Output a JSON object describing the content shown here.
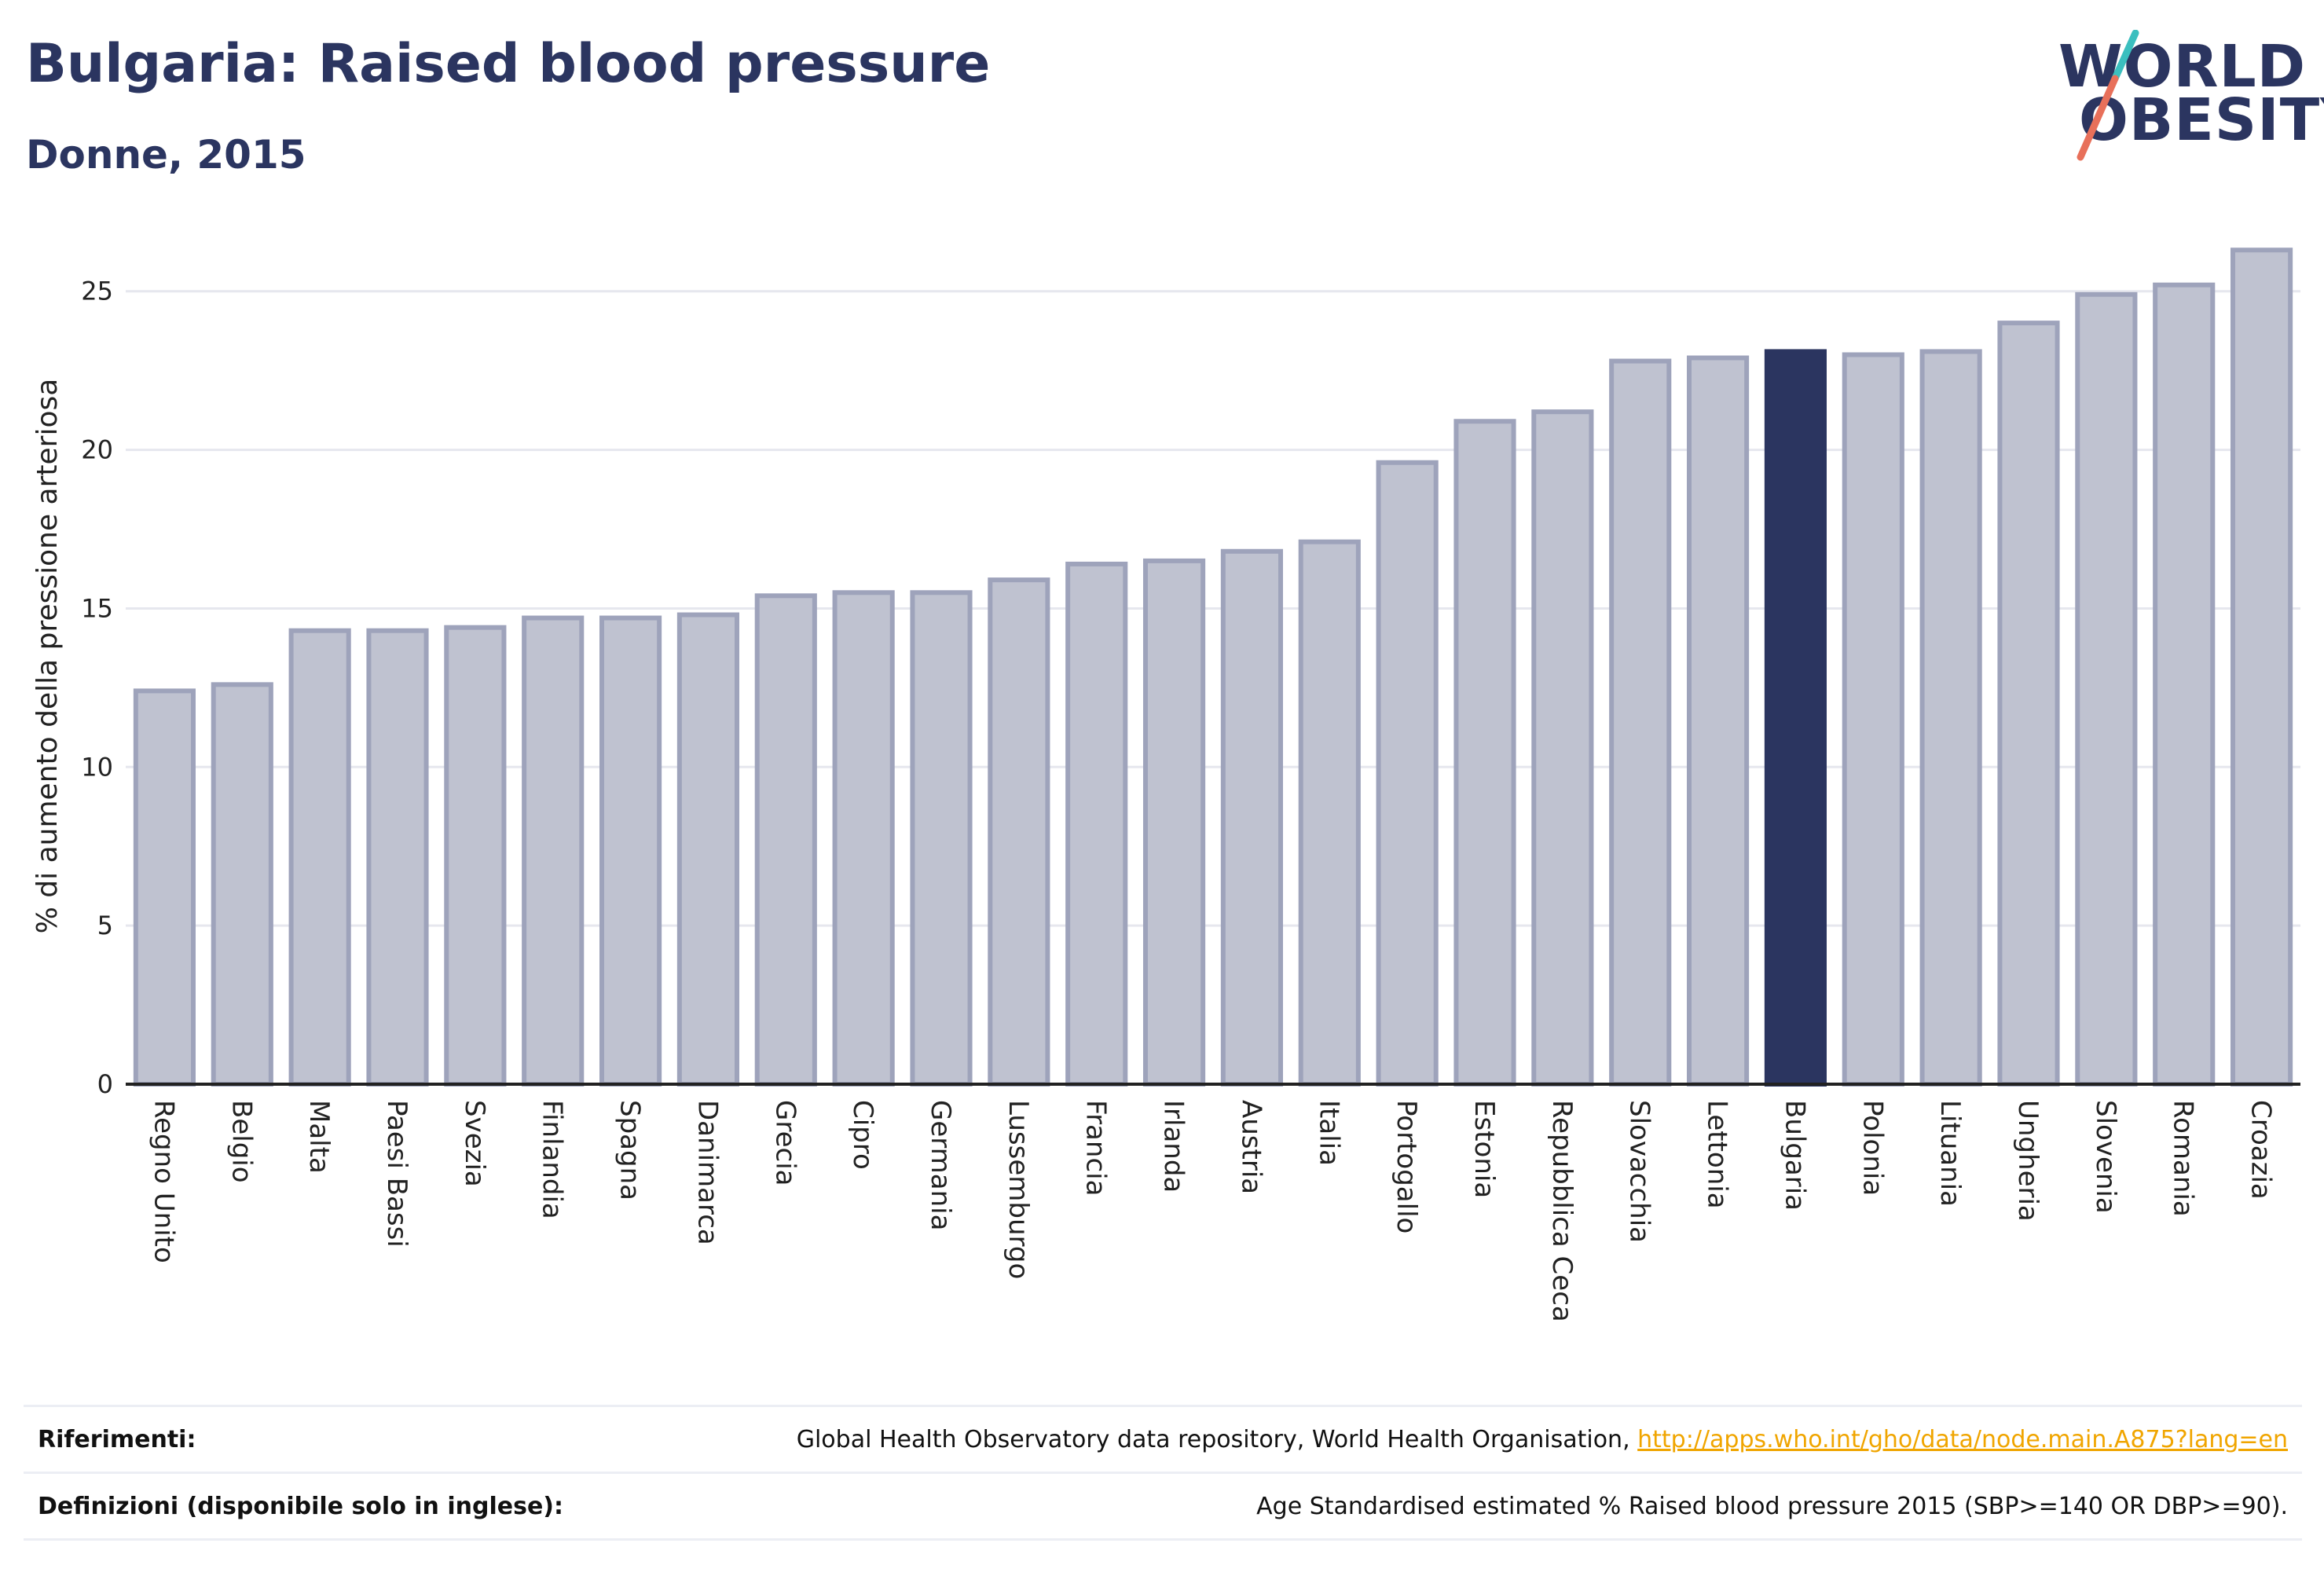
{
  "header": {
    "title": "Bulgaria: Raised blood pressure",
    "subtitle": "Donne, 2015"
  },
  "logo": {
    "line1": "WORLD",
    "line2": "OBESITY",
    "accent_teal": "#3bbfbf",
    "accent_red": "#e8705a"
  },
  "colors": {
    "bar": "#bfc2d0",
    "bar_border": "#9ea3bb",
    "highlight": "#2b3560",
    "grid": "#e6e7ee",
    "axis": "#222222"
  },
  "chart_data": {
    "type": "bar",
    "ylabel": "% di aumento della pressione arteriosa",
    "ylim": [
      0,
      27
    ],
    "yticks": [
      0,
      5,
      10,
      15,
      20,
      25
    ],
    "grid": true,
    "highlight": "Bulgaria",
    "categories": [
      "Regno Unito",
      "Belgio",
      "Malta",
      "Paesi Bassi",
      "Svezia",
      "Finlandia",
      "Spagna",
      "Danimarca",
      "Grecia",
      "Cipro",
      "Germania",
      "Lussemburgo",
      "Francia",
      "Irlanda",
      "Austria",
      "Italia",
      "Portogallo",
      "Estonia",
      "Repubblica Ceca",
      "Slovacchia",
      "Lettonia",
      "Bulgaria",
      "Polonia",
      "Lituania",
      "Ungheria",
      "Slovenia",
      "Romania",
      "Croazia"
    ],
    "values": [
      12.4,
      12.6,
      14.3,
      14.3,
      14.4,
      14.7,
      14.7,
      14.8,
      15.4,
      15.5,
      15.5,
      15.9,
      16.4,
      16.5,
      16.8,
      17.1,
      19.6,
      20.9,
      21.2,
      22.8,
      22.9,
      23.1,
      23.0,
      23.1,
      24.0,
      24.9,
      25.2,
      26.3
    ]
  },
  "references": {
    "refs_label": "Riferimenti:",
    "refs_text": "Global Health Observatory data repository, World Health Organisation, ",
    "refs_link": "http://apps.who.int/gho/data/node.main.A875?lang=en",
    "defs_label": "Definizioni (disponibile solo in inglese):",
    "defs_text": "Age Standardised estimated % Raised blood pressure 2015 (SBP>=140 OR DBP>=90)."
  }
}
